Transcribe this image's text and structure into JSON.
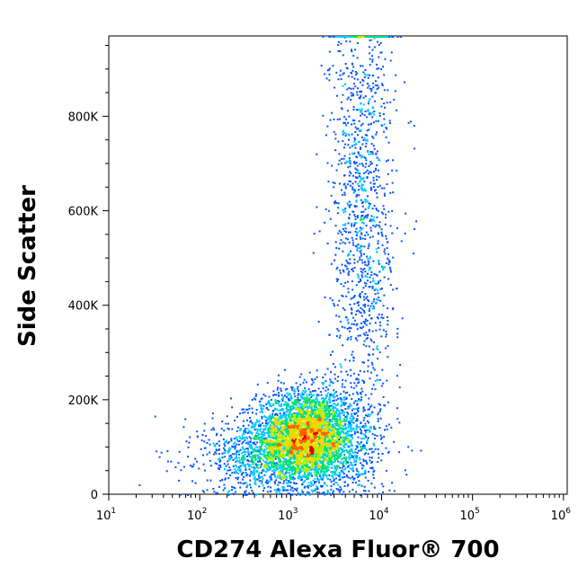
{
  "chart_data": {
    "type": "scatter",
    "title": "",
    "xlabel": "CD274 Alexa Fluor® 700",
    "ylabel": "Side Scatter",
    "x_scale": "log",
    "xlim": [
      10,
      1100000
    ],
    "ylim": [
      0,
      970000
    ],
    "x_ticks": [
      {
        "value": 10,
        "base": "10",
        "exp": "1"
      },
      {
        "value": 100,
        "base": "10",
        "exp": "2"
      },
      {
        "value": 1000,
        "base": "10",
        "exp": "3"
      },
      {
        "value": 10000,
        "base": "10",
        "exp": "4"
      },
      {
        "value": 100000,
        "base": "10",
        "exp": "5"
      },
      {
        "value": 1000000,
        "base": "10",
        "exp": "6"
      }
    ],
    "y_ticks": [
      {
        "value": 0,
        "label": "0"
      },
      {
        "value": 200000,
        "label": "200K"
      },
      {
        "value": 400000,
        "label": "400K"
      },
      {
        "value": 600000,
        "label": "600K"
      },
      {
        "value": 800000,
        "label": "800K"
      }
    ],
    "colormap": [
      "#0000cc",
      "#0055ff",
      "#00c8ff",
      "#00e070",
      "#b0f000",
      "#ffd000",
      "#ff6000",
      "#e00000"
    ],
    "populations": [
      {
        "x_center": 1500,
        "y_center": 130000,
        "x_spread_decades": 0.28,
        "y_spread": 45000,
        "weight": 0.55
      },
      {
        "x_center": 900,
        "y_center": 80000,
        "x_spread_decades": 0.45,
        "y_spread": 40000,
        "weight": 0.25
      },
      {
        "x_center": 6000,
        "y_center": 600000,
        "x_spread_decades": 0.18,
        "y_spread": 260000,
        "weight": 0.2
      }
    ],
    "saturation_ceiling_y": 970000,
    "grid": false,
    "legend": "none"
  }
}
